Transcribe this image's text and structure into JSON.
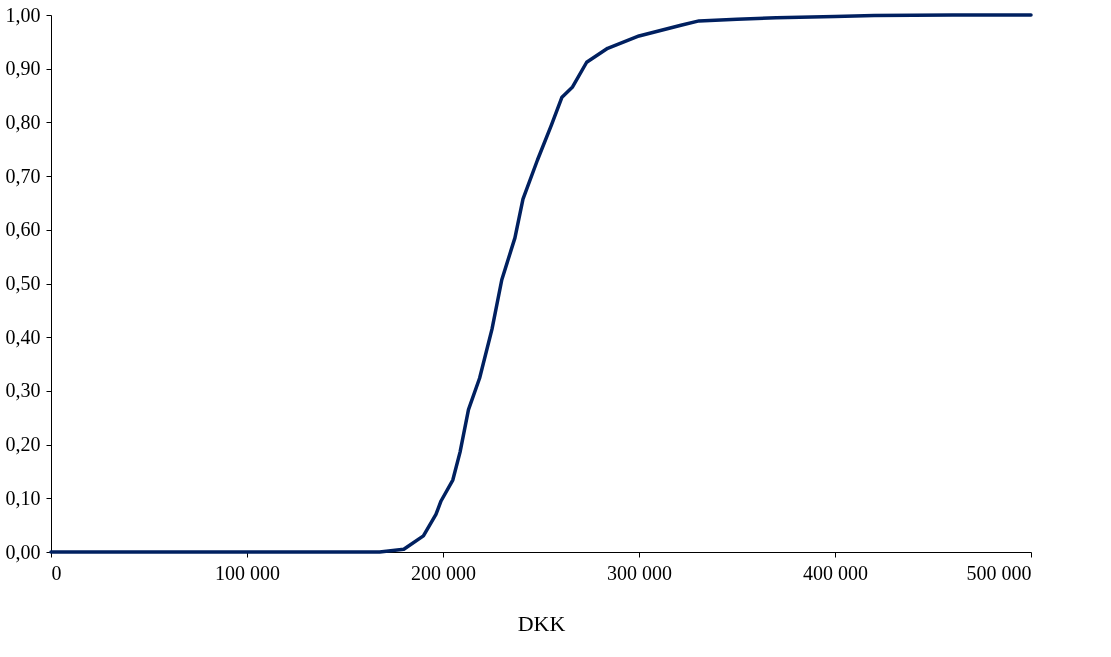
{
  "chart_data": {
    "type": "line",
    "xlabel": "DKK",
    "x": [
      0,
      100000,
      167700,
      180000,
      190000,
      196400,
      199000,
      205000,
      208700,
      213000,
      218700,
      225000,
      230000,
      236700,
      240800,
      248200,
      255300,
      260700,
      266100,
      273300,
      284000,
      300000,
      321400,
      330600,
      350000,
      370000,
      400000,
      420000,
      460000,
      500000
    ],
    "series": [
      {
        "color": "#002060",
        "values": [
          0,
          0,
          0,
          0.005,
          0.03,
          0.07,
          0.095,
          0.134,
          0.186,
          0.265,
          0.324,
          0.415,
          0.507,
          0.585,
          0.657,
          0.73,
          0.795,
          0.847,
          0.866,
          0.912,
          0.938,
          0.961,
          0.981,
          0.989,
          0.992,
          0.995,
          0.997,
          0.999,
          1.0,
          1.0
        ]
      }
    ],
    "xlim": [
      0,
      500000
    ],
    "xticks": [
      {
        "value": 0,
        "label": "0"
      },
      {
        "value": 100000,
        "label": "100 000"
      },
      {
        "value": 200000,
        "label": "200 000"
      },
      {
        "value": 300000,
        "label": "300 000"
      },
      {
        "value": 400000,
        "label": "400 000"
      },
      {
        "value": 500000,
        "label": "500 000"
      }
    ],
    "ylim": [
      0,
      1
    ],
    "yticks": [
      {
        "value": 0,
        "label": "0,00"
      },
      {
        "value": 0.1,
        "label": "0,10"
      },
      {
        "value": 0.2,
        "label": "0,20"
      },
      {
        "value": 0.3,
        "label": "0,30"
      },
      {
        "value": 0.4,
        "label": "0,40"
      },
      {
        "value": 0.5,
        "label": "0,50"
      },
      {
        "value": 0.6,
        "label": "0,60"
      },
      {
        "value": 0.7,
        "label": "0,70"
      },
      {
        "value": 0.8,
        "label": "0,80"
      },
      {
        "value": 0.9,
        "label": "0,90"
      },
      {
        "value": 1.0,
        "label": "1,00"
      }
    ],
    "grid": false,
    "marker": "none",
    "line_style": "solid"
  }
}
